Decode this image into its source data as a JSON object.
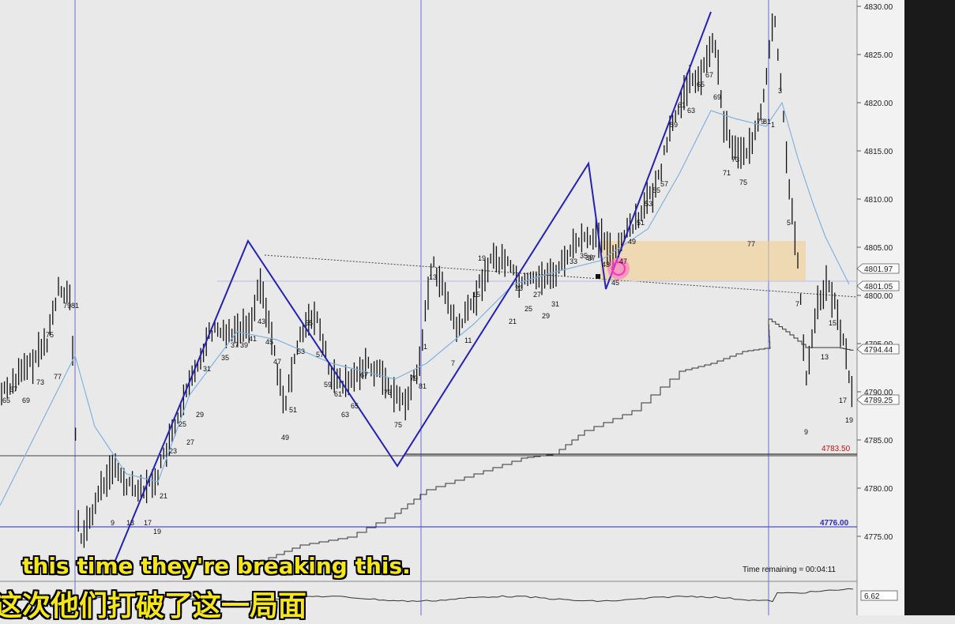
{
  "window": {
    "background": "#e9e9e9",
    "right_panel_color": "#1a1a1a"
  },
  "price_axis": {
    "labels": [
      "4830.00",
      "4825.00",
      "4820.00",
      "4815.00",
      "4810.00",
      "4805.00",
      "4800.00",
      "4795.00",
      "4790.00",
      "4785.00",
      "4780.00",
      "4775.00"
    ],
    "tag_4801": "4801.05",
    "tag_4803": "4801.97",
    "tag_4794": "4794.44",
    "tag_4789": "4789.25",
    "tag_4783": "4783.50",
    "tag_4776": "4776.00",
    "tag_indicator": "6.62",
    "accent_blue": "#2a2ac8",
    "accent_red": "#d01010"
  },
  "bar_counts": [
    {
      "text": "65"
    },
    {
      "text": "67"
    },
    {
      "text": "69"
    },
    {
      "text": "73"
    },
    {
      "text": "75"
    },
    {
      "text": "77"
    },
    {
      "text": "79"
    },
    {
      "text": "81"
    },
    {
      "text": "9"
    },
    {
      "text": "13"
    },
    {
      "text": "17"
    },
    {
      "text": "19"
    },
    {
      "text": "21"
    },
    {
      "text": "23"
    },
    {
      "text": "25"
    },
    {
      "text": "27"
    },
    {
      "text": "29"
    },
    {
      "text": "31"
    },
    {
      "text": "35"
    },
    {
      "text": "37"
    },
    {
      "text": "39"
    },
    {
      "text": "41"
    },
    {
      "text": "43"
    },
    {
      "text": "45"
    },
    {
      "text": "47"
    },
    {
      "text": "49"
    },
    {
      "text": "51"
    },
    {
      "text": "53"
    },
    {
      "text": "55"
    },
    {
      "text": "57"
    },
    {
      "text": "59"
    },
    {
      "text": "61"
    },
    {
      "text": "63"
    },
    {
      "text": "65"
    },
    {
      "text": "67"
    },
    {
      "text": "73"
    },
    {
      "text": "75"
    },
    {
      "text": "79"
    },
    {
      "text": "81"
    },
    {
      "text": "1"
    },
    {
      "text": "13"
    },
    {
      "text": "7"
    },
    {
      "text": "11"
    },
    {
      "text": "15"
    },
    {
      "text": "19"
    },
    {
      "text": "21"
    },
    {
      "text": "23"
    },
    {
      "text": "25"
    },
    {
      "text": "27"
    },
    {
      "text": "29"
    },
    {
      "text": "31"
    },
    {
      "text": "33"
    },
    {
      "text": "35"
    },
    {
      "text": "37"
    },
    {
      "text": "39"
    },
    {
      "text": "43"
    },
    {
      "text": "45"
    },
    {
      "text": "47"
    },
    {
      "text": "49"
    },
    {
      "text": "51"
    },
    {
      "text": "53"
    },
    {
      "text": "55"
    },
    {
      "text": "57"
    },
    {
      "text": "59"
    },
    {
      "text": "61"
    },
    {
      "text": "63"
    },
    {
      "text": "65"
    },
    {
      "text": "67"
    },
    {
      "text": "69"
    },
    {
      "text": "71"
    },
    {
      "text": "73"
    },
    {
      "text": "75"
    },
    {
      "text": "77"
    },
    {
      "text": "79"
    },
    {
      "text": "81"
    },
    {
      "text": "1"
    },
    {
      "text": "3"
    },
    {
      "text": "5"
    },
    {
      "text": "7"
    },
    {
      "text": "9"
    },
    {
      "text": "13"
    },
    {
      "text": "15"
    },
    {
      "text": "17"
    },
    {
      "text": "19"
    }
  ],
  "status": {
    "time_remaining": "Time remaining = 00:04:11"
  },
  "captions": {
    "english": "this time they're breaking this.",
    "chinese": "这次他们打破了这一局面"
  }
}
